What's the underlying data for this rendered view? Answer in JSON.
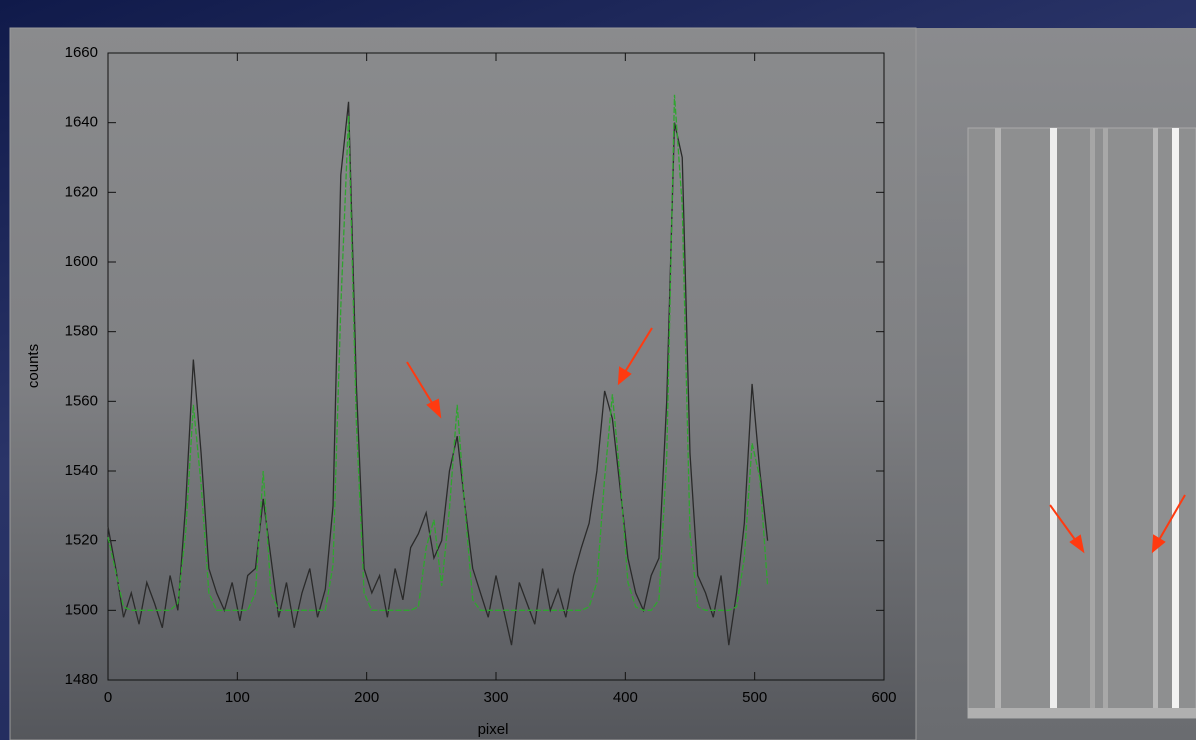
{
  "chart_data": {
    "type": "line",
    "x": [
      0,
      6,
      12,
      18,
      24,
      30,
      36,
      42,
      48,
      54,
      60,
      66,
      72,
      78,
      84,
      90,
      96,
      102,
      108,
      114,
      120,
      126,
      132,
      138,
      144,
      150,
      156,
      162,
      168,
      174,
      180,
      186,
      192,
      198,
      204,
      210,
      216,
      222,
      228,
      234,
      240,
      246,
      252,
      258,
      264,
      270,
      276,
      282,
      288,
      294,
      300,
      306,
      312,
      318,
      324,
      330,
      336,
      342,
      348,
      354,
      360,
      366,
      372,
      378,
      384,
      390,
      396,
      402,
      408,
      414,
      420,
      426,
      432,
      438,
      444,
      450,
      456,
      462,
      468,
      474,
      480,
      486,
      492,
      498,
      504,
      510
    ],
    "series": [
      {
        "color": "#2a2a2a",
        "values": [
          1524,
          1512,
          1498,
          1505,
          1496,
          1508,
          1502,
          1495,
          1510,
          1500,
          1530,
          1572,
          1545,
          1512,
          1505,
          1500,
          1508,
          1497,
          1510,
          1512,
          1532,
          1515,
          1498,
          1508,
          1495,
          1505,
          1512,
          1498,
          1506,
          1530,
          1625,
          1646,
          1565,
          1512,
          1505,
          1510,
          1498,
          1512,
          1503,
          1518,
          1522,
          1528,
          1515,
          1520,
          1540,
          1550,
          1530,
          1512,
          1505,
          1498,
          1510,
          1500,
          1490,
          1508,
          1502,
          1496,
          1512,
          1500,
          1506,
          1498,
          1510,
          1518,
          1525,
          1540,
          1563,
          1555,
          1535,
          1515,
          1505,
          1500,
          1510,
          1515,
          1560,
          1640,
          1630,
          1545,
          1510,
          1505,
          1498,
          1510,
          1490,
          1505,
          1525,
          1565,
          1540,
          1520
        ]
      },
      {
        "color": "#2fa52f",
        "dashed": true,
        "values": [
          1521,
          1511,
          1501,
          1500,
          1500,
          1500,
          1500,
          1500,
          1500,
          1502,
          1522,
          1559,
          1536,
          1505,
          1500,
          1500,
          1500,
          1500,
          1500,
          1505,
          1540,
          1505,
          1500,
          1500,
          1500,
          1500,
          1500,
          1500,
          1500,
          1513,
          1587,
          1642,
          1554,
          1505,
          1500,
          1500,
          1500,
          1500,
          1500,
          1500,
          1501,
          1518,
          1526,
          1507,
          1529,
          1559,
          1529,
          1503,
          1500,
          1500,
          1500,
          1500,
          1500,
          1500,
          1500,
          1500,
          1500,
          1500,
          1500,
          1500,
          1500,
          1500,
          1501,
          1508,
          1538,
          1562,
          1538,
          1508,
          1501,
          1500,
          1500,
          1503,
          1544,
          1648,
          1616,
          1522,
          1501,
          1500,
          1500,
          1500,
          1500,
          1501,
          1515,
          1548,
          1538,
          1507
        ]
      }
    ],
    "xlim": [
      0,
      600
    ],
    "ylim": [
      1480,
      1660
    ],
    "xticks": [
      0,
      100,
      200,
      300,
      400,
      500,
      600
    ],
    "yticks": [
      1480,
      1500,
      1520,
      1540,
      1560,
      1580,
      1600,
      1620,
      1640,
      1660
    ],
    "xlabel": "pixel",
    "ylabel": "counts"
  }
}
